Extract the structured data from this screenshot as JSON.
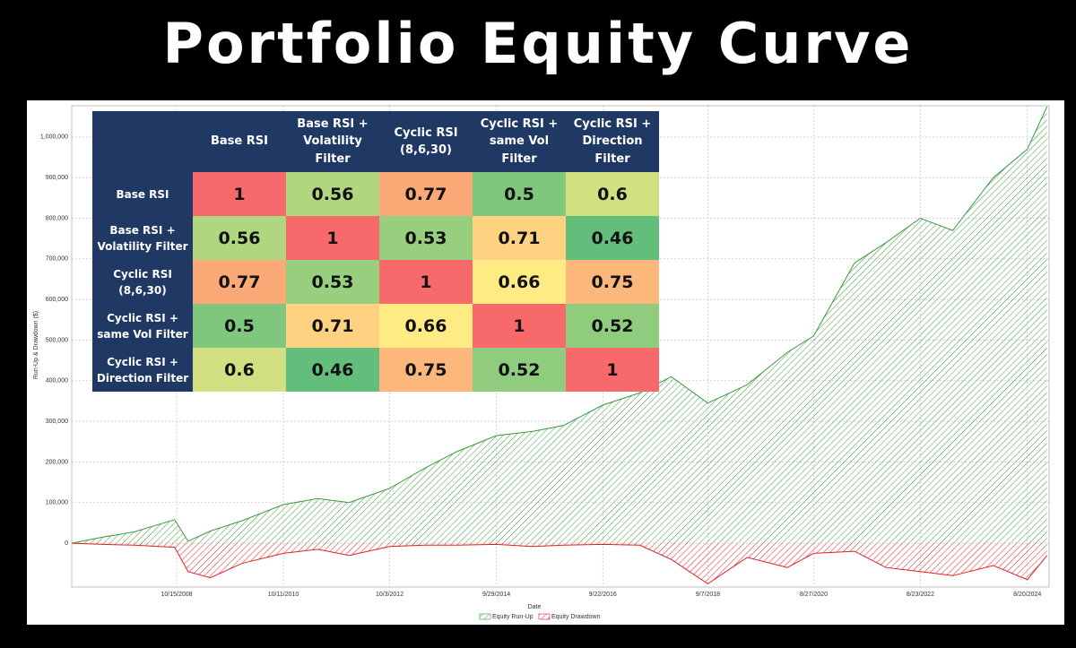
{
  "title": "Portfolio Equity Curve",
  "chart_data": {
    "type": "area",
    "x_label": "Date",
    "y_label": "Run-Up & Drawdown ($)",
    "x": [
      "11/1/2006",
      "6/1/2007",
      "1/1/2008",
      "10/1/2008",
      "1/1/2009",
      "6/1/2009",
      "1/1/2010",
      "10/11/2010",
      "6/1/2011",
      "1/1/2012",
      "10/3/2012",
      "6/1/2013",
      "1/1/2014",
      "9/29/2014",
      "6/1/2015",
      "1/1/2016",
      "9/22/2016",
      "6/1/2017",
      "1/1/2018",
      "9/7/2018",
      "6/1/2019",
      "3/1/2020",
      "8/27/2020",
      "6/1/2021",
      "1/1/2022",
      "8/23/2022",
      "4/1/2023",
      "1/1/2024",
      "8/20/2024",
      "1/1/2025"
    ],
    "series": [
      {
        "name": "Equity Run-Up",
        "color": "#3a9a3a",
        "values": [
          0,
          15000,
          28000,
          58000,
          5000,
          30000,
          55000,
          95000,
          110000,
          100000,
          135000,
          185000,
          225000,
          265000,
          275000,
          290000,
          340000,
          370000,
          410000,
          345000,
          390000,
          470000,
          510000,
          690000,
          740000,
          800000,
          770000,
          900000,
          970000,
          1075000
        ]
      },
      {
        "name": "Equity Drawdown",
        "color": "#e02020",
        "values": [
          0,
          -3000,
          -5000,
          -10000,
          -70000,
          -85000,
          -50000,
          -25000,
          -15000,
          -30000,
          -8000,
          -5000,
          -5000,
          -3000,
          -8000,
          -5000,
          -3000,
          -5000,
          -40000,
          -100000,
          -35000,
          -60000,
          -25000,
          -20000,
          -60000,
          -70000,
          -80000,
          -55000,
          -90000,
          -30000
        ]
      }
    ],
    "xlim": [
      "11/1/2006",
      "1/15/2025"
    ],
    "xticks": [
      "10/15/2008",
      "10/11/2010",
      "10/3/2012",
      "9/29/2014",
      "9/22/2016",
      "9/7/2018",
      "8/27/2020",
      "8/23/2022",
      "8/20/2024"
    ],
    "ylim": [
      -108000,
      1077000
    ],
    "yticks": [
      0,
      {
        "value": 100000,
        "label": "100,000"
      },
      {
        "value": 200000,
        "label": "200,000"
      },
      {
        "value": 300000,
        "label": "300,000"
      },
      {
        "value": 400000,
        "label": "400,000"
      },
      {
        "value": 500000,
        "label": "500,000"
      },
      {
        "value": 600000,
        "label": "600,000"
      },
      {
        "value": 700000,
        "label": "700,000"
      },
      {
        "value": 800000,
        "label": "800,000"
      },
      {
        "value": 900000,
        "label": "900,000"
      },
      {
        "value": 1000000,
        "label": "1,000,000"
      }
    ],
    "grid": true
  },
  "table": {
    "columns": [
      "Base RSI",
      "Base RSI + Volatility Filter",
      "Cyclic RSI (8,6,30)",
      "Cyclic RSI + same Vol Filter",
      "Cyclic RSI + Direction Filter"
    ],
    "rows": [
      {
        "label": "Base RSI",
        "values": [
          1,
          0.56,
          0.77,
          0.5,
          0.6
        ],
        "colors": [
          "#f8696b",
          "#b0d680",
          "#fbaa77",
          "#7fc77d",
          "#d3e082"
        ]
      },
      {
        "label": "Base RSI + Volatility Filter",
        "values": [
          0.56,
          1,
          0.53,
          0.71,
          0.46
        ],
        "colors": [
          "#b0d680",
          "#f8696b",
          "#98cf7e",
          "#fed280",
          "#63be7b"
        ]
      },
      {
        "label": "Cyclic RSI (8,6,30)",
        "values": [
          0.77,
          0.53,
          1,
          0.66,
          0.75
        ],
        "colors": [
          "#fbaa77",
          "#98cf7e",
          "#f8696b",
          "#ffeb84",
          "#fcb77a"
        ]
      },
      {
        "label": "Cyclic RSI + same Vol Filter",
        "values": [
          0.5,
          0.71,
          0.66,
          1,
          0.52
        ],
        "colors": [
          "#7fc77d",
          "#fed280",
          "#ffeb84",
          "#f8696b",
          "#90cc7e"
        ]
      },
      {
        "label": "Cyclic RSI + Direction Filter",
        "values": [
          0.6,
          0.46,
          0.75,
          0.52,
          1
        ],
        "colors": [
          "#d3e082",
          "#63be7b",
          "#fcb77a",
          "#90cc7e",
          "#f8696b"
        ]
      }
    ]
  }
}
